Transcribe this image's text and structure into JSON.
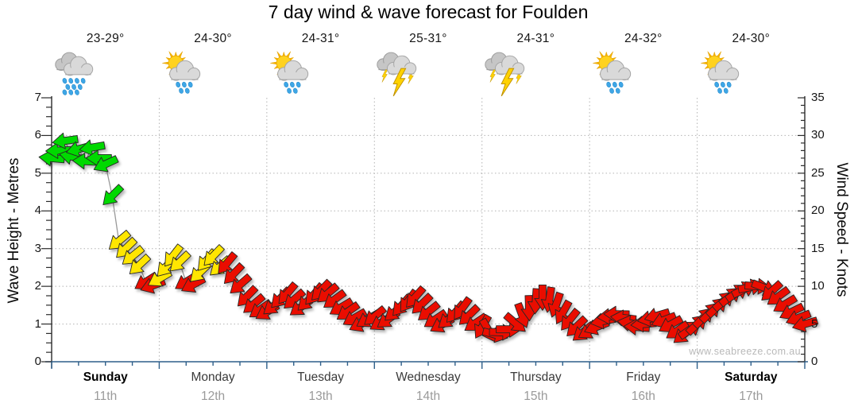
{
  "watermark": "www.seabreeze.com.au",
  "chart_data": {
    "type": "line",
    "title": "7 day wind & wave forecast for Foulden",
    "left_axis": {
      "label": "Wave Height - Metres",
      "min": 0,
      "max": 7,
      "major_tick": 1,
      "minor_tick": 0.25,
      "ticks": [
        0,
        1,
        2,
        3,
        4,
        5,
        6,
        7
      ]
    },
    "right_axis": {
      "label": "Wind Speed - Knots",
      "min": 0,
      "max": 35,
      "major_tick": 5,
      "minor_tick": 1,
      "ticks": [
        0,
        5,
        10,
        15,
        20,
        25,
        30,
        35
      ]
    },
    "grid": true,
    "days": [
      {
        "name": "Sunday",
        "date": "11th",
        "temp": "23-29°",
        "icon": "rain",
        "weekend": true
      },
      {
        "name": "Monday",
        "date": "12th",
        "temp": "24-30°",
        "icon": "sun-cloud-rain",
        "weekend": false
      },
      {
        "name": "Tuesday",
        "date": "13th",
        "temp": "24-31°",
        "icon": "sun-cloud-rain",
        "weekend": false
      },
      {
        "name": "Wednesday",
        "date": "14th",
        "temp": "25-31°",
        "icon": "storm",
        "weekend": false
      },
      {
        "name": "Thursday",
        "date": "15th",
        "temp": "24-31°",
        "icon": "storm",
        "weekend": false
      },
      {
        "name": "Friday",
        "date": "16th",
        "temp": "24-32°",
        "icon": "sun-cloud-rain",
        "weekend": false
      },
      {
        "name": "Saturday",
        "date": "17th",
        "temp": "24-30°",
        "icon": "sun-cloud-rain",
        "weekend": true
      }
    ],
    "arrow_colors": {
      "g": "#00d900",
      "y": "#ffe600",
      "r": "#ea1000"
    },
    "point_format": [
      "time_days",
      "wind_speed_knots",
      "arrow_direction_deg_cw_from_east",
      "color_key"
    ],
    "series": [
      {
        "name": "wind-speed-arrows",
        "unit": "knots",
        "points": [
          [
            0.0,
            27,
            185,
            "g"
          ],
          [
            0.0625,
            28,
            178,
            "g"
          ],
          [
            0.125,
            29.3,
            172,
            "g"
          ],
          [
            0.1875,
            27.2,
            192,
            "g"
          ],
          [
            0.25,
            28.2,
            165,
            "g"
          ],
          [
            0.3125,
            26.6,
            183,
            "g"
          ],
          [
            0.375,
            28.4,
            170,
            "g"
          ],
          [
            0.4375,
            27,
            180,
            "g"
          ],
          [
            0.5,
            26.2,
            155,
            "g"
          ],
          [
            0.5625,
            22,
            135,
            "g"
          ],
          [
            0.625,
            16,
            140,
            "y"
          ],
          [
            0.6875,
            15,
            136,
            "y"
          ],
          [
            0.75,
            14,
            141,
            "y"
          ],
          [
            0.8125,
            12.8,
            137,
            "y"
          ],
          [
            0.875,
            10.6,
            148,
            "r"
          ],
          [
            0.9375,
            10.1,
            160,
            "r"
          ],
          [
            1.0,
            11,
            150,
            "y"
          ],
          [
            1.0625,
            12.6,
            132,
            "y"
          ],
          [
            1.125,
            14,
            128,
            "y"
          ],
          [
            1.1875,
            13.2,
            136,
            "y"
          ],
          [
            1.25,
            10.6,
            148,
            "r"
          ],
          [
            1.3125,
            10.2,
            152,
            "r"
          ],
          [
            1.375,
            11.8,
            136,
            "y"
          ],
          [
            1.4375,
            13.4,
            130,
            "y"
          ],
          [
            1.5,
            14,
            134,
            "y"
          ],
          [
            1.5625,
            12.6,
            139,
            "y"
          ],
          [
            1.625,
            13,
            130,
            "r"
          ],
          [
            1.6875,
            11.6,
            134,
            "r"
          ],
          [
            1.75,
            10.2,
            139,
            "r"
          ],
          [
            1.8125,
            8.6,
            134,
            "r"
          ],
          [
            1.875,
            7.6,
            140,
            "r"
          ],
          [
            1.9375,
            6.9,
            145,
            "r"
          ],
          [
            2.0,
            6.6,
            149,
            "r"
          ],
          [
            2.0625,
            7.4,
            141,
            "r"
          ],
          [
            2.125,
            8.4,
            134,
            "r"
          ],
          [
            2.1875,
            9,
            130,
            "r"
          ],
          [
            2.25,
            8.2,
            139,
            "r"
          ],
          [
            2.3125,
            7.2,
            144,
            "r"
          ],
          [
            2.375,
            8,
            136,
            "r"
          ],
          [
            2.4375,
            8.9,
            130,
            "r"
          ],
          [
            2.5,
            9.4,
            134,
            "r"
          ],
          [
            2.5625,
            9,
            140,
            "r"
          ],
          [
            2.625,
            8.2,
            144,
            "r"
          ],
          [
            2.6875,
            7.2,
            149,
            "r"
          ],
          [
            2.75,
            6.6,
            145,
            "r"
          ],
          [
            2.8125,
            5.8,
            150,
            "r"
          ],
          [
            2.875,
            5,
            154,
            "r"
          ],
          [
            2.9375,
            5.6,
            149,
            "r"
          ],
          [
            3.0,
            6,
            141,
            "r"
          ],
          [
            3.0625,
            5.2,
            149,
            "r"
          ],
          [
            3.125,
            5.6,
            144,
            "r"
          ],
          [
            3.1875,
            6.6,
            139,
            "r"
          ],
          [
            3.25,
            7.4,
            131,
            "r"
          ],
          [
            3.3125,
            8,
            126,
            "r"
          ],
          [
            3.375,
            8.5,
            131,
            "r"
          ],
          [
            3.4375,
            7.6,
            136,
            "r"
          ],
          [
            3.5,
            6.6,
            141,
            "r"
          ],
          [
            3.5625,
            5.6,
            146,
            "r"
          ],
          [
            3.625,
            4.9,
            151,
            "r"
          ],
          [
            3.6875,
            5.6,
            141,
            "r"
          ],
          [
            3.75,
            6.5,
            131,
            "r"
          ],
          [
            3.8125,
            7,
            126,
            "r"
          ],
          [
            3.875,
            6.1,
            136,
            "r"
          ],
          [
            3.9375,
            5.1,
            146,
            "r"
          ],
          [
            4.0,
            4.6,
            120,
            "r"
          ],
          [
            4.0625,
            4.1,
            60,
            "r"
          ],
          [
            4.125,
            3.6,
            15,
            "r"
          ],
          [
            4.1875,
            3.9,
            2,
            "r"
          ],
          [
            4.25,
            4.3,
            0,
            "r"
          ],
          [
            4.3125,
            5.1,
            40,
            "r"
          ],
          [
            4.375,
            6.1,
            70,
            "r"
          ],
          [
            4.4375,
            7.1,
            88,
            "r"
          ],
          [
            4.5,
            8,
            94,
            "r"
          ],
          [
            4.5625,
            8.5,
            90,
            "r"
          ],
          [
            4.625,
            8.2,
            99,
            "r"
          ],
          [
            4.6875,
            7.5,
            109,
            "r"
          ],
          [
            4.75,
            6.5,
            119,
            "r"
          ],
          [
            4.8125,
            5.5,
            129,
            "r"
          ],
          [
            4.875,
            4.6,
            136,
            "r"
          ],
          [
            4.9375,
            3.9,
            141,
            "r"
          ],
          [
            5.0,
            4.1,
            149,
            "r"
          ],
          [
            5.0625,
            4.6,
            159,
            "r"
          ],
          [
            5.125,
            5.4,
            169,
            "r"
          ],
          [
            5.1875,
            6,
            175,
            "r"
          ],
          [
            5.25,
            6.3,
            181,
            "r"
          ],
          [
            5.3125,
            5.8,
            186,
            "r"
          ],
          [
            5.375,
            5.1,
            190,
            "r"
          ],
          [
            5.4375,
            4.6,
            184,
            "r"
          ],
          [
            5.5,
            5,
            175,
            "r"
          ],
          [
            5.5625,
            5.7,
            169,
            "r"
          ],
          [
            5.625,
            6.1,
            164,
            "r"
          ],
          [
            5.6875,
            5.5,
            159,
            "r"
          ],
          [
            5.75,
            4.9,
            151,
            "r"
          ],
          [
            5.8125,
            4.1,
            146,
            "r"
          ],
          [
            5.875,
            3.6,
            141,
            "r"
          ],
          [
            5.9375,
            4.3,
            325,
            "r"
          ],
          [
            6.0,
            5,
            316,
            "r"
          ],
          [
            6.0625,
            5.9,
            315,
            "r"
          ],
          [
            6.125,
            6.6,
            314,
            "r"
          ],
          [
            6.1875,
            7.3,
            316,
            "r"
          ],
          [
            6.25,
            8.1,
            318,
            "r"
          ],
          [
            6.3125,
            8.7,
            321,
            "r"
          ],
          [
            6.375,
            9.2,
            326,
            "r"
          ],
          [
            6.4375,
            9.6,
            334,
            "r"
          ],
          [
            6.5,
            9.9,
            349,
            "r"
          ],
          [
            6.5625,
            10,
            4,
            "r"
          ],
          [
            6.625,
            9.8,
            21,
            "r"
          ],
          [
            6.6875,
            9.3,
            138,
            "r"
          ],
          [
            6.75,
            8.6,
            144,
            "r"
          ],
          [
            6.8125,
            7.6,
            149,
            "r"
          ],
          [
            6.875,
            6.6,
            154,
            "r"
          ],
          [
            6.9375,
            5.8,
            159,
            "r"
          ],
          [
            7.0,
            5,
            164,
            "r"
          ]
        ]
      }
    ]
  },
  "style_colors": {
    "axis_blue": "#2e5f8a",
    "axis_dark": "#2b2b2b",
    "grid": "#b3b3b3",
    "line": "#999999"
  }
}
